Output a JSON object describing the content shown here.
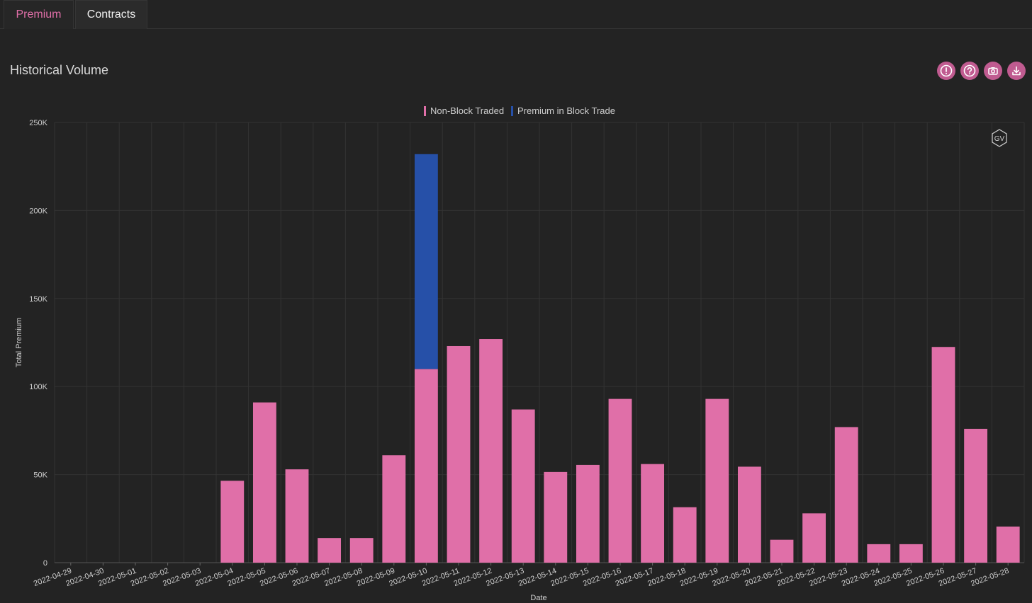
{
  "tabs": [
    {
      "label": "Premium",
      "active": true
    },
    {
      "label": "Contracts",
      "active": false
    }
  ],
  "section_title": "Historical Volume",
  "toolbar": {
    "buttons": [
      {
        "icon": "alert-icon"
      },
      {
        "icon": "help-icon"
      },
      {
        "icon": "camera-icon"
      },
      {
        "icon": "download-icon"
      }
    ]
  },
  "watermark": "GV",
  "colors": {
    "accent": "#e06fa8",
    "non_block": "#e06fa8",
    "block": "#2650a8",
    "background": "#232323",
    "grid": "#333333"
  },
  "chart_data": {
    "type": "bar",
    "stacked": true,
    "xlabel": "Date",
    "ylabel": "Total Premium",
    "ylim": [
      0,
      250000
    ],
    "yticks": [
      0,
      50000,
      100000,
      150000,
      200000,
      250000
    ],
    "ytick_labels": [
      "0",
      "50K",
      "100K",
      "150K",
      "200K",
      "250K"
    ],
    "legend_position": "top-center",
    "grid": true,
    "categories": [
      "2022-04-29",
      "2022-04-30",
      "2022-05-01",
      "2022-05-02",
      "2022-05-03",
      "2022-05-04",
      "2022-05-05",
      "2022-05-06",
      "2022-05-07",
      "2022-05-08",
      "2022-05-09",
      "2022-05-10",
      "2022-05-11",
      "2022-05-12",
      "2022-05-13",
      "2022-05-14",
      "2022-05-15",
      "2022-05-16",
      "2022-05-17",
      "2022-05-18",
      "2022-05-19",
      "2022-05-20",
      "2022-05-21",
      "2022-05-22",
      "2022-05-23",
      "2022-05-24",
      "2022-05-25",
      "2022-05-26",
      "2022-05-27",
      "2022-05-28"
    ],
    "series": [
      {
        "name": "Non-Block Traded",
        "color": "#e06fa8",
        "values": [
          0,
          0,
          0,
          0,
          0,
          46500,
          91000,
          53000,
          14000,
          14000,
          61000,
          110000,
          123000,
          127000,
          87000,
          51500,
          55500,
          93000,
          56000,
          31500,
          93000,
          54500,
          13000,
          28000,
          77000,
          10500,
          10500,
          122500,
          76000,
          20500
        ]
      },
      {
        "name": "Premium in Block Trade",
        "color": "#2650a8",
        "values": [
          0,
          0,
          0,
          0,
          0,
          0,
          0,
          0,
          0,
          0,
          0,
          122000,
          0,
          0,
          0,
          0,
          0,
          0,
          0,
          0,
          0,
          0,
          0,
          0,
          0,
          0,
          0,
          0,
          0,
          0
        ]
      }
    ]
  }
}
